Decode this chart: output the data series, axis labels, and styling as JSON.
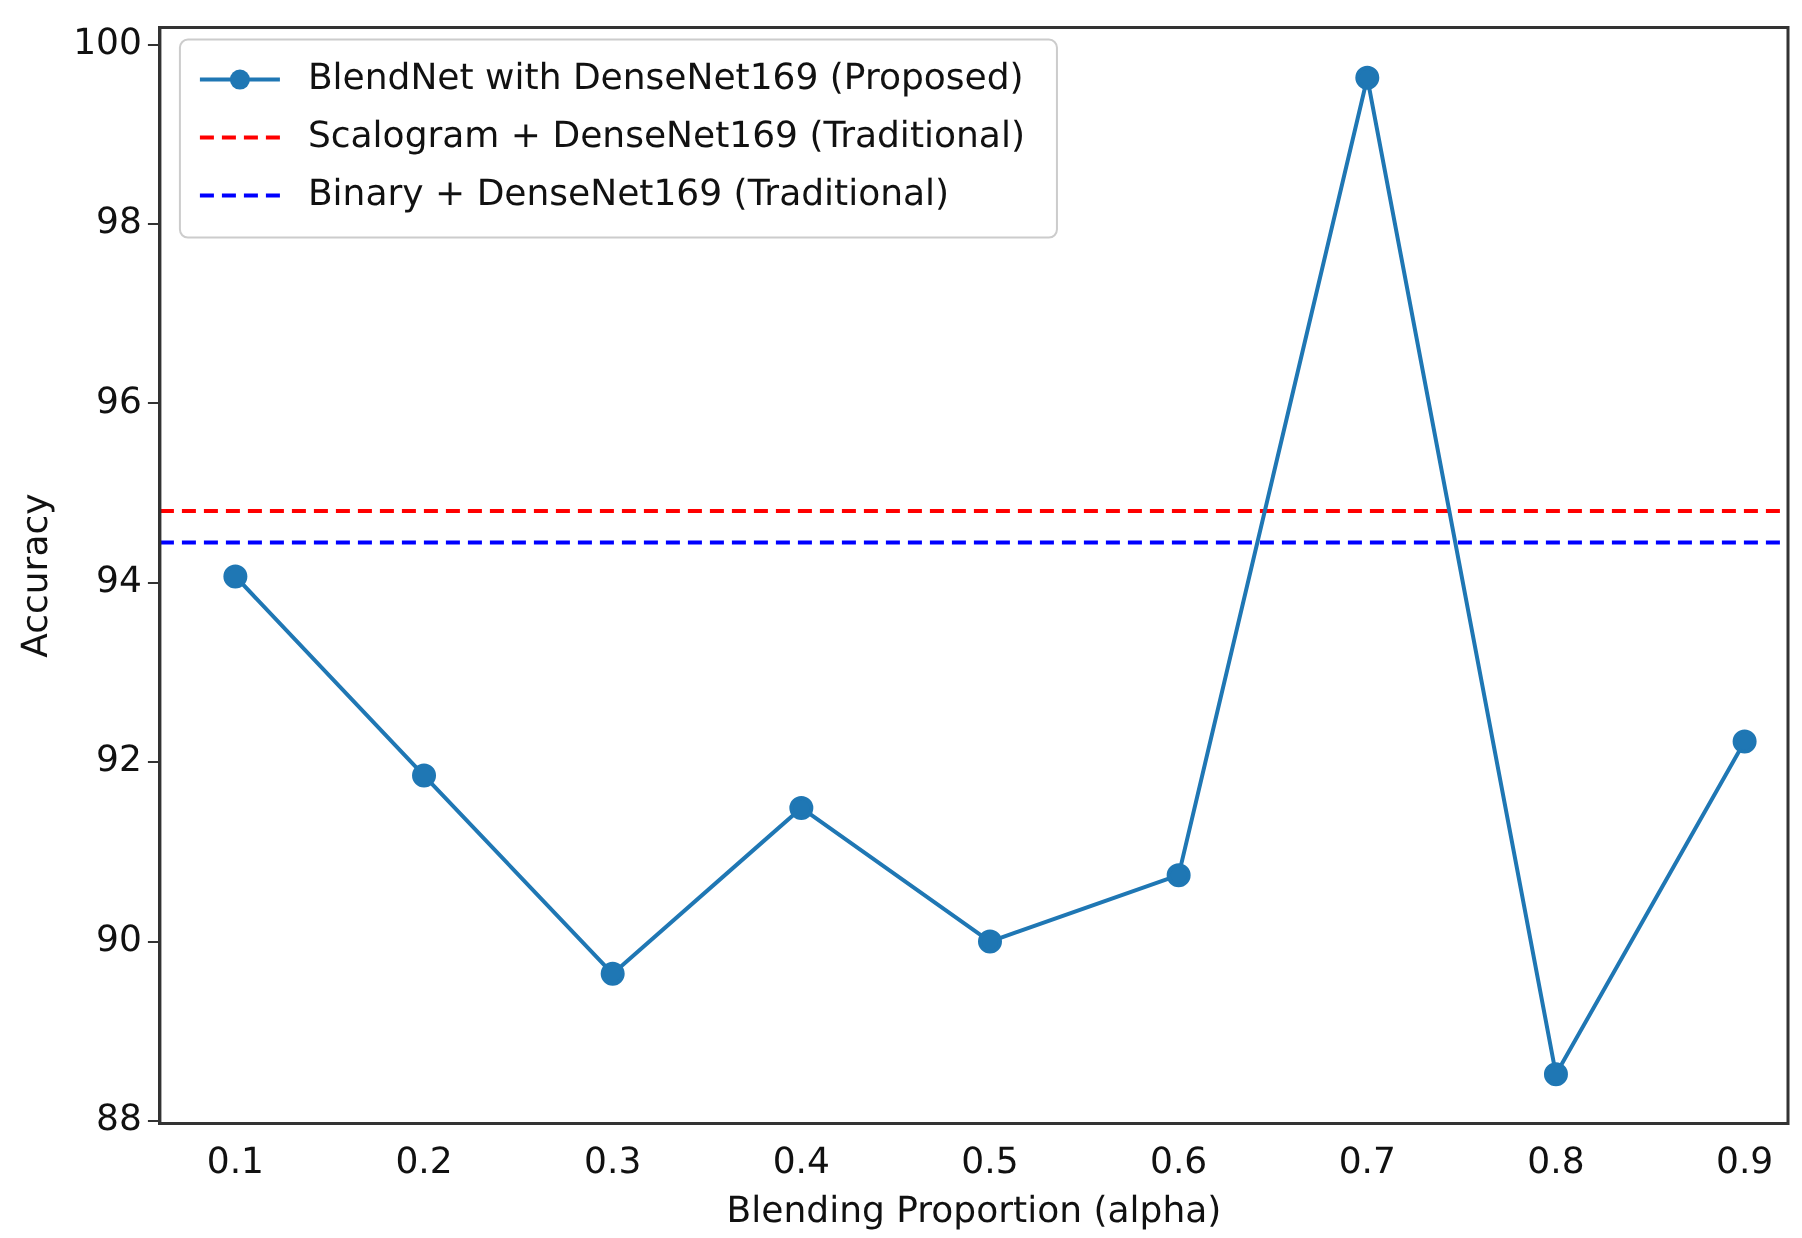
{
  "chart_data": {
    "type": "line",
    "xlabel": "Blending Proportion (alpha)",
    "ylabel": "Accuracy",
    "x": [
      0.1,
      0.2,
      0.3,
      0.4,
      0.5,
      0.6,
      0.7,
      0.8,
      0.9
    ],
    "series": [
      {
        "name": "BlendNet with DenseNet169 (Proposed)",
        "color": "#1f77b4",
        "values": [
          94.07,
          91.85,
          89.64,
          91.49,
          90.0,
          90.74,
          99.63,
          88.52,
          92.23
        ]
      }
    ],
    "ref_lines": [
      {
        "axis": "y",
        "value": 94.8,
        "label": "Scalogram + DenseNet169 (Traditional)",
        "color": "#ff0000",
        "line_style": "dashed"
      },
      {
        "axis": "y",
        "value": 94.45,
        "label": "Binary + DenseNet169 (Traditional)",
        "color": "#0000ff",
        "line_style": "dashed"
      }
    ],
    "xlim": [
      0.06,
      0.923
    ],
    "xticks": [
      0.1,
      0.2,
      0.3,
      0.4,
      0.5,
      0.6,
      0.7,
      0.8,
      0.9
    ],
    "ylim": [
      87.97,
      100.19
    ],
    "yticks": [
      88,
      90,
      92,
      94,
      96,
      98,
      100
    ],
    "grid": false,
    "legend": "top left",
    "marker": "circle",
    "line_style": "solid"
  }
}
